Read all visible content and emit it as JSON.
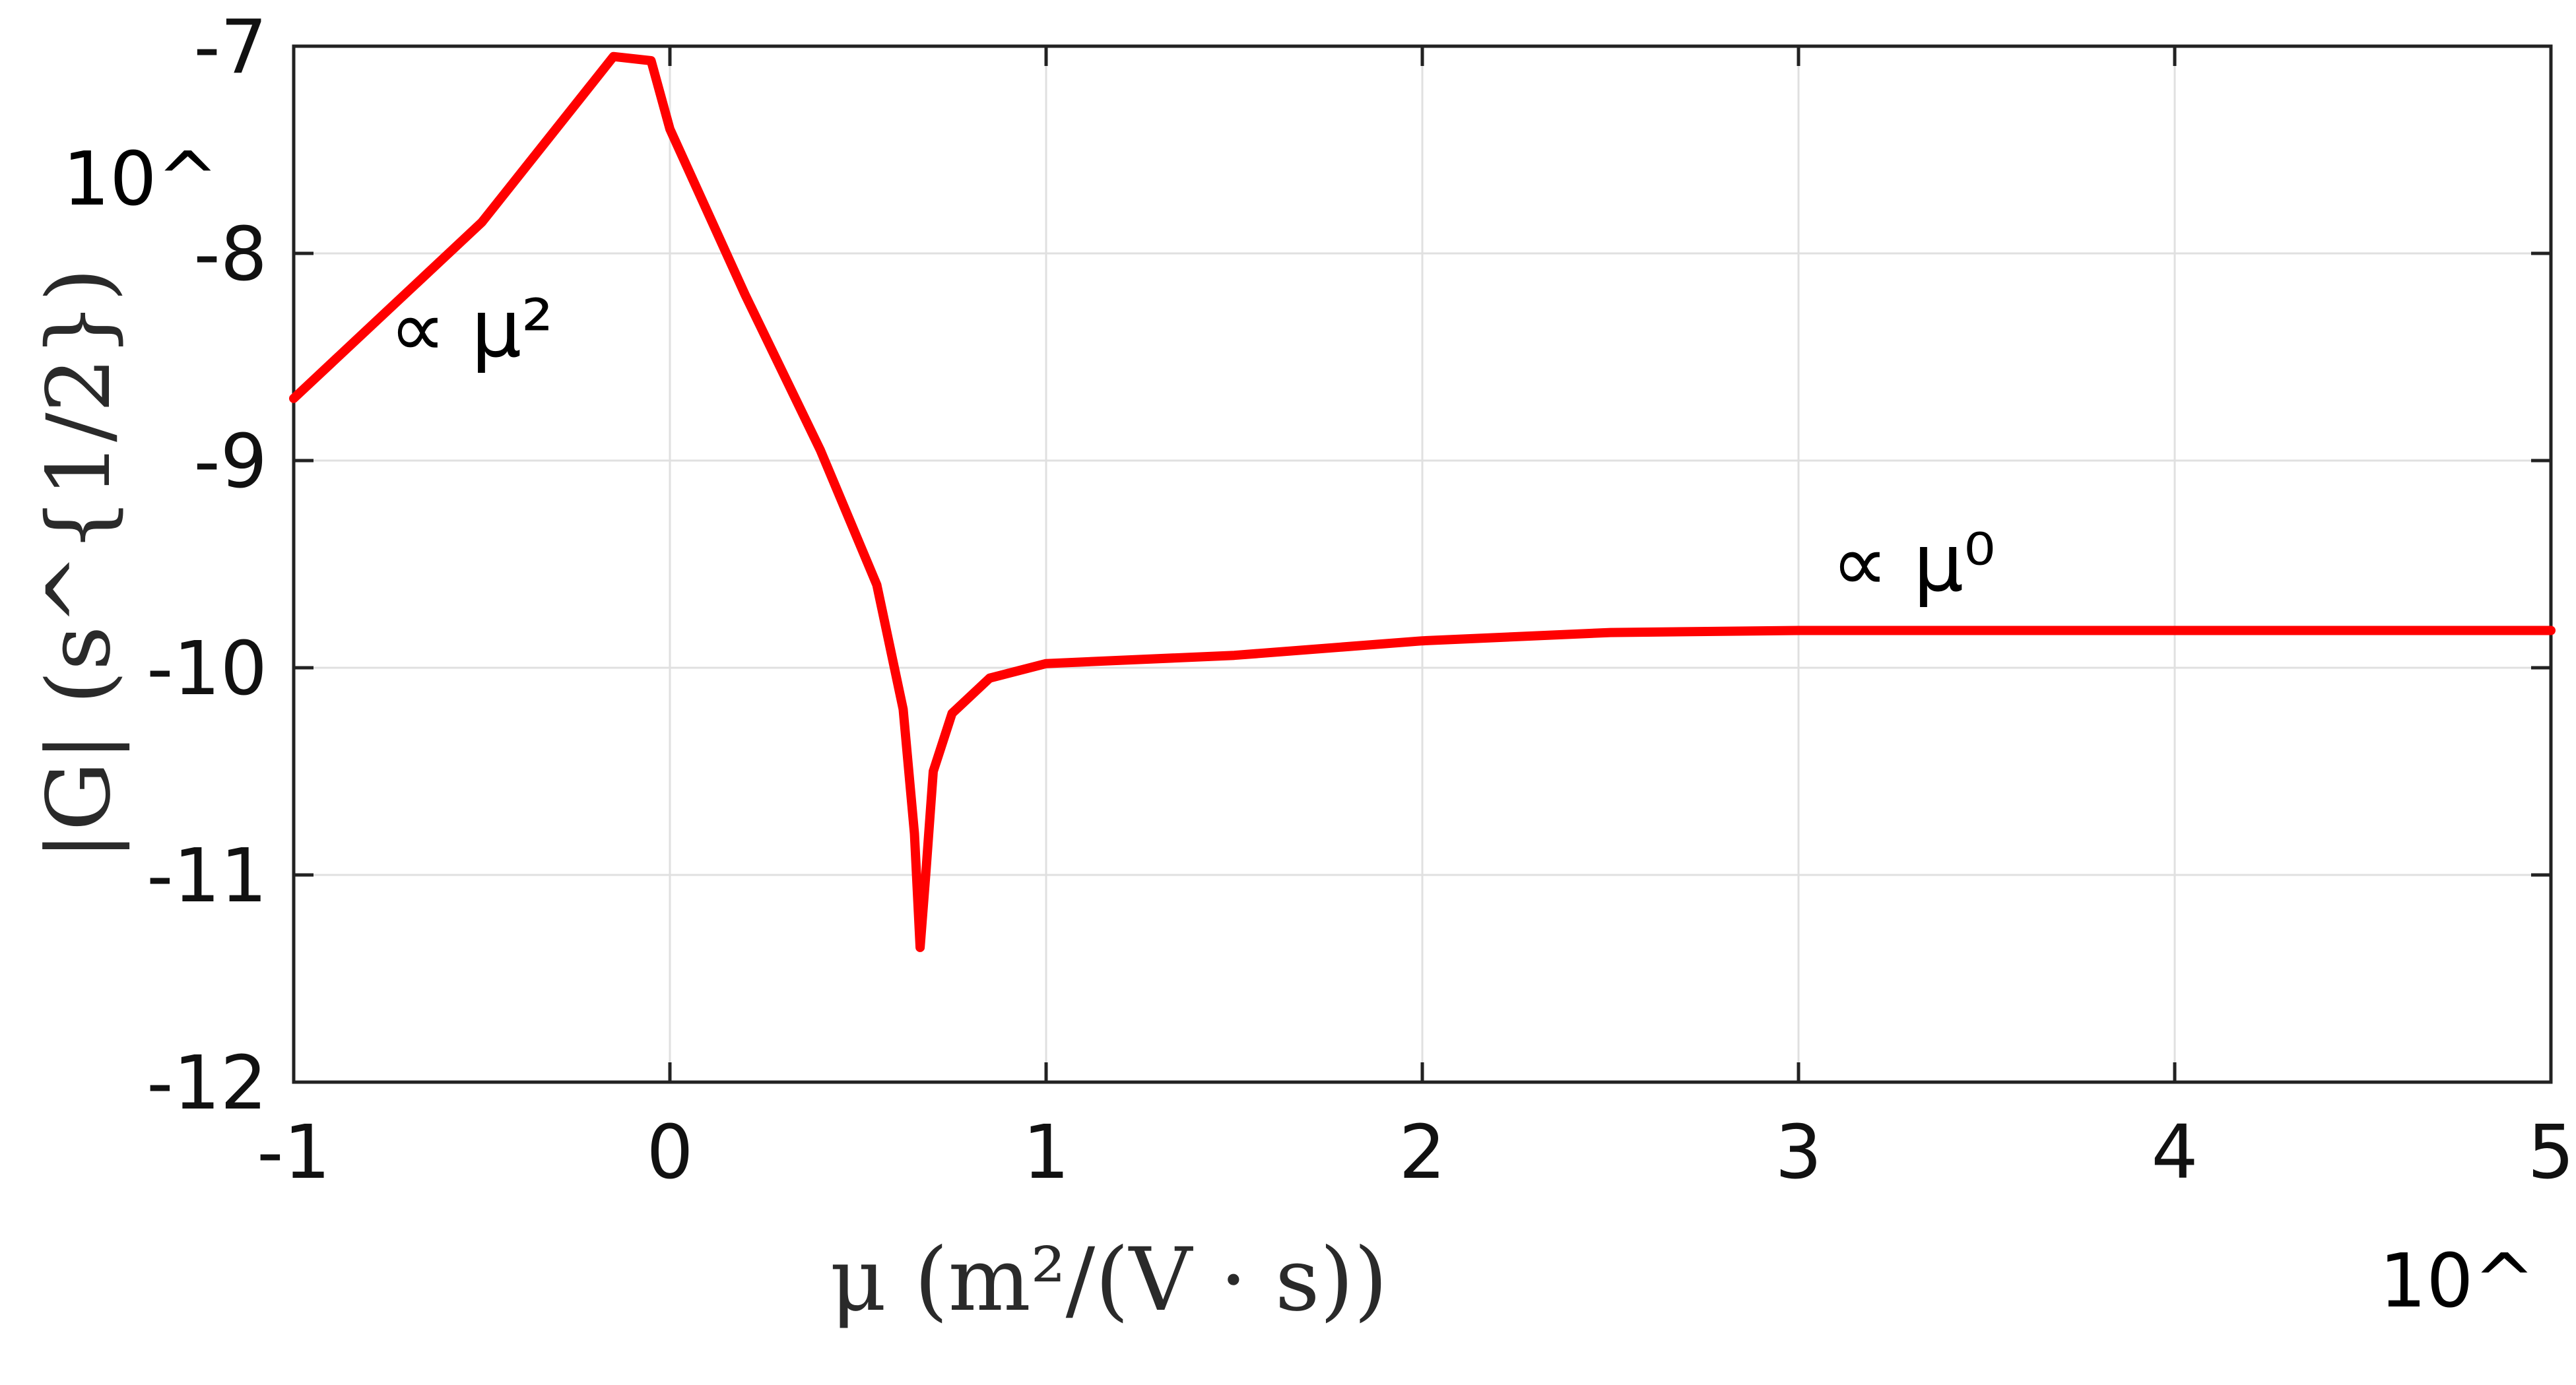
{
  "chart_data": {
    "type": "line",
    "xlabel": "μ (m²/(V · s))",
    "ylabel": "|G| (s^{1/2})",
    "x_scale": "log10",
    "y_scale": "log10",
    "x_tick_prefix": "10^",
    "y_tick_prefix": "10^",
    "xlim": [
      -1,
      5
    ],
    "ylim": [
      -12,
      -7
    ],
    "x_ticks": [
      "-1",
      "0",
      "1",
      "2",
      "3",
      "4",
      "5"
    ],
    "y_ticks": [
      "-7",
      "-8",
      "-9",
      "-10",
      "-11",
      "-12"
    ],
    "grid": true,
    "line_color": "#ff0000",
    "series": [
      {
        "x": [
          -1.0,
          -0.5,
          -0.15,
          -0.05,
          0.0,
          0.2,
          0.4,
          0.55,
          0.62,
          0.65,
          0.665,
          0.68,
          0.7,
          0.75,
          0.85,
          1.0,
          1.5,
          2.0,
          2.5,
          3.0,
          3.5,
          4.0,
          5.0
        ],
        "y": [
          -8.7,
          -7.85,
          -7.05,
          -7.07,
          -7.4,
          -8.2,
          -8.95,
          -9.6,
          -10.2,
          -10.8,
          -11.35,
          -11.0,
          -10.5,
          -10.22,
          -10.05,
          -9.98,
          -9.94,
          -9.87,
          -9.83,
          -9.82,
          -9.82,
          -9.82,
          -9.82
        ]
      }
    ],
    "annotations": [
      {
        "text": "∝ μ²",
        "x": -0.7,
        "y": -8.35
      },
      {
        "text": "∝ μ⁰",
        "x": 3.2,
        "y": -9.55
      }
    ]
  }
}
